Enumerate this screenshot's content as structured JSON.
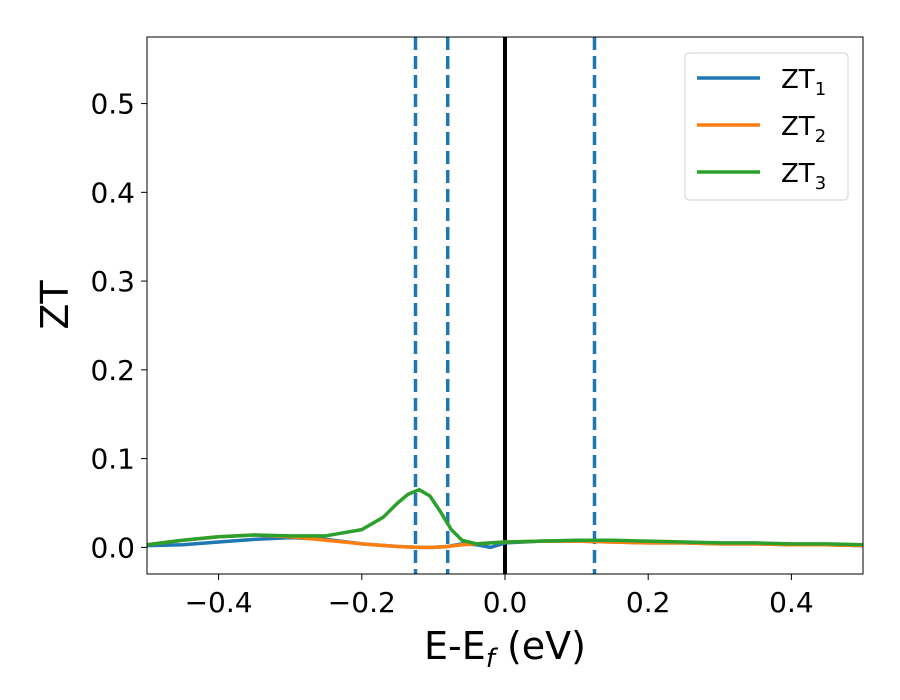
{
  "chart_data": {
    "type": "line",
    "title": "",
    "xlabel": {
      "main": "E-E",
      "sub": "f",
      "suffix": " (eV)"
    },
    "ylabel": "ZT",
    "xlim": [
      -0.5,
      0.5
    ],
    "ylim": [
      -0.03,
      0.575
    ],
    "xticks": [
      -0.4,
      -0.2,
      0.0,
      0.2,
      0.4
    ],
    "xtick_labels": [
      "−0.4",
      "−0.2",
      "0.0",
      "0.2",
      "0.4"
    ],
    "yticks": [
      0.0,
      0.1,
      0.2,
      0.3,
      0.4,
      0.5
    ],
    "ytick_labels": [
      "0.0",
      "0.1",
      "0.2",
      "0.3",
      "0.4",
      "0.5"
    ],
    "grid": false,
    "legend_position": "top-right",
    "vlines": [
      {
        "x": -0.125,
        "style": "dashed",
        "color": "#1f77b4"
      },
      {
        "x": -0.08,
        "style": "dashed",
        "color": "#1f77b4"
      },
      {
        "x": 0.0,
        "style": "solid",
        "color": "#000000"
      },
      {
        "x": 0.125,
        "style": "dashed",
        "color": "#1f77b4"
      }
    ],
    "series": [
      {
        "name": "ZT",
        "subscript": "1",
        "color": "#1f77b4",
        "x": [
          -0.5,
          -0.45,
          -0.4,
          -0.35,
          -0.3,
          -0.25,
          -0.2,
          -0.15,
          -0.12,
          -0.1,
          -0.08,
          -0.06,
          -0.04,
          -0.02,
          0.0,
          0.05,
          0.1,
          0.15,
          0.2,
          0.25,
          0.3,
          0.35,
          0.4,
          0.45,
          0.5
        ],
        "values": [
          0.002,
          0.003,
          0.006,
          0.009,
          0.011,
          0.009,
          0.004,
          0.001,
          0.0,
          0.0,
          0.001,
          0.004,
          0.003,
          0.0,
          0.005,
          0.007,
          0.007,
          0.006,
          0.005,
          0.005,
          0.004,
          0.004,
          0.003,
          0.003,
          0.002
        ]
      },
      {
        "name": "ZT",
        "subscript": "2",
        "color": "#ff7f0e",
        "x": [
          -0.5,
          -0.45,
          -0.4,
          -0.35,
          -0.3,
          -0.25,
          -0.2,
          -0.15,
          -0.12,
          -0.1,
          -0.08,
          -0.06,
          -0.04,
          -0.02,
          0.0,
          0.05,
          0.1,
          0.15,
          0.2,
          0.25,
          0.3,
          0.35,
          0.4,
          0.45,
          0.5
        ],
        "values": [
          0.003,
          0.008,
          0.012,
          0.014,
          0.012,
          0.008,
          0.004,
          0.001,
          0.0,
          0.0,
          0.001,
          0.003,
          0.004,
          0.005,
          0.006,
          0.007,
          0.007,
          0.006,
          0.005,
          0.005,
          0.004,
          0.004,
          0.003,
          0.003,
          0.002
        ]
      },
      {
        "name": "ZT",
        "subscript": "3",
        "color": "#2ca02c",
        "x": [
          -0.5,
          -0.45,
          -0.4,
          -0.35,
          -0.3,
          -0.25,
          -0.2,
          -0.17,
          -0.15,
          -0.135,
          -0.12,
          -0.105,
          -0.09,
          -0.075,
          -0.06,
          -0.04,
          -0.02,
          0.0,
          0.05,
          0.1,
          0.15,
          0.2,
          0.25,
          0.3,
          0.35,
          0.4,
          0.45,
          0.5
        ],
        "values": [
          0.003,
          0.008,
          0.012,
          0.014,
          0.013,
          0.013,
          0.02,
          0.034,
          0.05,
          0.06,
          0.065,
          0.058,
          0.04,
          0.02,
          0.008,
          0.004,
          0.005,
          0.006,
          0.007,
          0.008,
          0.008,
          0.007,
          0.006,
          0.005,
          0.005,
          0.004,
          0.004,
          0.003
        ]
      }
    ]
  }
}
